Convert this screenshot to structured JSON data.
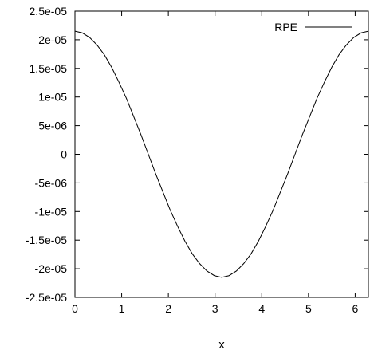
{
  "chart_data": {
    "type": "line",
    "title": "",
    "xlabel": "x",
    "ylabel": "",
    "xlim": [
      0,
      6.2832
    ],
    "ylim": [
      -2.5e-05,
      2.5e-05
    ],
    "x_ticks": [
      0,
      1,
      2,
      3,
      4,
      5,
      6
    ],
    "x_tick_labels": [
      "0",
      "1",
      "2",
      "3",
      "4",
      "5",
      "6"
    ],
    "y_ticks": [
      2.5e-05,
      2e-05,
      1.5e-05,
      1e-05,
      5e-06,
      0,
      -5e-06,
      -1e-05,
      -1.5e-05,
      -2e-05,
      -2.5e-05
    ],
    "y_tick_labels": [
      "2.5e-05",
      "2e-05",
      "1.5e-05",
      "1e-05",
      "5e-06",
      "0",
      "-5e-06",
      "-1e-05",
      "-1.5e-05",
      "-2e-05",
      "-2.5e-05"
    ],
    "grid": false,
    "legend": {
      "position": "top-right",
      "entries": [
        "RPE"
      ]
    },
    "series": [
      {
        "name": "RPE",
        "color": "#000000",
        "x": [
          0,
          0.157,
          0.314,
          0.471,
          0.628,
          0.785,
          0.942,
          1.1,
          1.257,
          1.414,
          1.571,
          1.728,
          1.885,
          2.042,
          2.199,
          2.356,
          2.513,
          2.67,
          2.827,
          2.985,
          3.142,
          3.299,
          3.456,
          3.613,
          3.77,
          3.927,
          4.084,
          4.241,
          4.398,
          4.555,
          4.712,
          4.869,
          5.027,
          5.184,
          5.341,
          5.498,
          5.655,
          5.812,
          5.969,
          6.126,
          6.283
        ],
        "y": [
          2.15e-05,
          2.12e-05,
          2.04e-05,
          1.91e-05,
          1.74e-05,
          1.52e-05,
          1.26e-05,
          9.8e-06,
          6.6e-06,
          3.4e-06,
          0,
          -3.4e-06,
          -6.6e-06,
          -9.8e-06,
          -1.26e-05,
          -1.52e-05,
          -1.74e-05,
          -1.91e-05,
          -2.04e-05,
          -2.12e-05,
          -2.15e-05,
          -2.12e-05,
          -2.04e-05,
          -1.91e-05,
          -1.74e-05,
          -1.52e-05,
          -1.26e-05,
          -9.8e-06,
          -6.6e-06,
          -3.4e-06,
          0,
          3.4e-06,
          6.6e-06,
          9.8e-06,
          1.26e-05,
          1.52e-05,
          1.74e-05,
          1.91e-05,
          2.04e-05,
          2.12e-05,
          2.15e-05
        ]
      }
    ]
  }
}
